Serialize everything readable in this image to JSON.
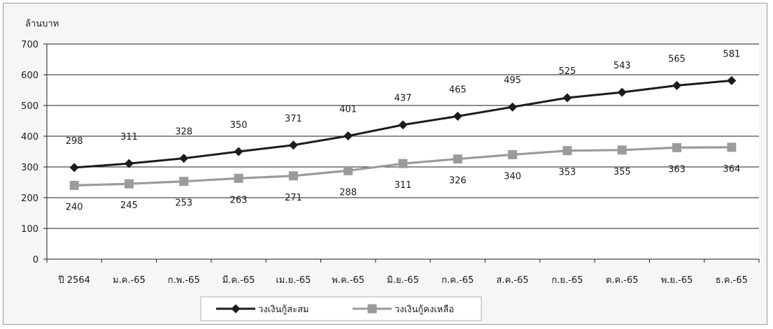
{
  "chart_data": {
    "type": "line",
    "ylabel": "ล้านบาท",
    "ylim": [
      0,
      700
    ],
    "yticks": [
      0,
      100,
      200,
      300,
      400,
      500,
      600,
      700
    ],
    "grid": true,
    "legend_position": "bottom",
    "categories": [
      "ปี 2564",
      "ม.ค.-65",
      "ก.พ.-65",
      "มี.ค.-65",
      "เม.ย.-65",
      "พ.ค.-65",
      "มิ.ย.-65",
      "ก.ค.-65",
      "ส.ค.-65",
      "ก.ย.-65",
      "ต.ค.-65",
      "พ.ย.-65",
      "ธ.ค.-65"
    ],
    "series": [
      {
        "name": "วงเงินกู้สะสม",
        "color": "#1c1c1c",
        "marker": "diamond",
        "values": [
          298,
          311,
          328,
          350,
          371,
          401,
          437,
          465,
          495,
          525,
          543,
          565,
          581
        ]
      },
      {
        "name": "วงเงินกู้คงเหลือ",
        "color": "#9b9b9b",
        "marker": "square",
        "values": [
          240,
          245,
          253,
          263,
          271,
          288,
          311,
          326,
          340,
          353,
          355,
          363,
          364
        ]
      }
    ]
  }
}
